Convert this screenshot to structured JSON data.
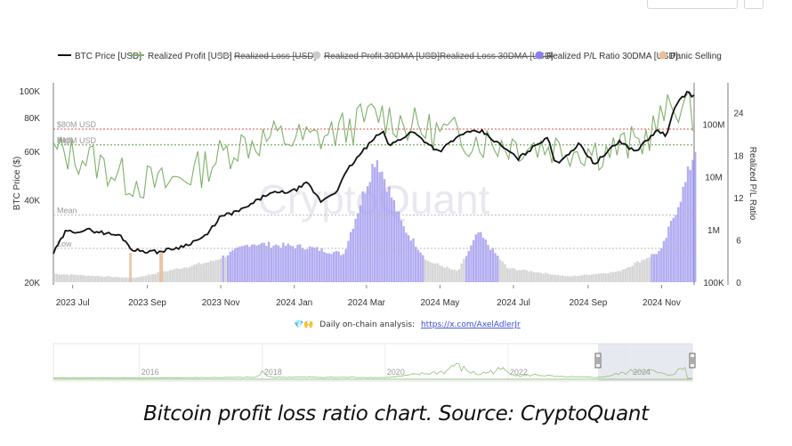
{
  "caption": "Bitcoin profit loss ratio chart. Source: CryptoQuant",
  "footer": {
    "note_icons": "💎🙌",
    "note_text": "Daily on-chain analysis:",
    "note_link": "https://x.com/AxelAdlerJr"
  },
  "colors": {
    "btc": "#111111",
    "profit": "#7fb069",
    "loss": "#c8c8c8",
    "ratio": "#a59ef0",
    "ratio_bg": "#cfcfcf",
    "panic": "#e8c09c",
    "ref80": "#d9534f",
    "ref40": "#7fb069"
  },
  "chart_data": {
    "type": "line",
    "legend_position": "top",
    "legend": [
      {
        "label": "BTC Price [USD]",
        "kind": "line",
        "color": "#111111",
        "struck": false
      },
      {
        "label": "Realized Profit [USD]",
        "kind": "line",
        "color": "#7fb069",
        "struck": false
      },
      {
        "label": "Realized Loss [USD]",
        "kind": "line",
        "color": "#bbbbbb",
        "struck": true
      },
      {
        "label": "Realized Profit 30DMA [USD]",
        "kind": "dot",
        "color": "#cccccc",
        "struck": true
      },
      {
        "label": "Realized Loss 30DMA [USD]",
        "kind": "line",
        "color": "#bbbbbb",
        "struck": true
      },
      {
        "label": "Realized P/L Ratio 30DMA [USD]",
        "kind": "dot",
        "color": "#8a7ff0",
        "struck": false
      },
      {
        "label": "Panic Selling",
        "kind": "dot",
        "color": "#e8c09c",
        "struck": false
      }
    ],
    "left_axis": {
      "title": "BTC Price ($)",
      "ticks": [
        "20K",
        "40K",
        "60K",
        "80K",
        "100K"
      ],
      "tick_values": [
        20000,
        40000,
        60000,
        80000,
        100000
      ],
      "range": [
        20000,
        100000
      ],
      "scale": "log"
    },
    "right_axis_1": {
      "ticks": [
        "100K",
        "1M",
        "10M",
        "100M"
      ],
      "tick_values": [
        100000,
        1000000,
        10000000,
        100000000
      ],
      "range": [
        100000,
        1000000000
      ],
      "scale": "log"
    },
    "right_axis_2": {
      "title": "Realized P/L Ratio",
      "ticks": [
        "0",
        "6",
        "12",
        "18",
        "24"
      ],
      "tick_values": [
        0,
        6,
        12,
        18,
        24
      ],
      "range": [
        0,
        28
      ]
    },
    "x_ticks": [
      "2023 Jul",
      "2023 Sep",
      "2023 Nov",
      "2024 Jan",
      "2024 Mar",
      "2024 May",
      "2024 Jul",
      "2024 Sep",
      "2024 Nov"
    ],
    "x_dates": [
      "2023-07-01",
      "2023-09-01",
      "2023-11-01",
      "2024-01-01",
      "2024-03-01",
      "2024-05-01",
      "2024-07-01",
      "2024-09-01",
      "2024-11-01"
    ],
    "reference_lines": [
      {
        "label": "$80M USD",
        "axis": "right_axis_1",
        "value": 80000000,
        "style": "dotted-red"
      },
      {
        "label": "High",
        "axis": "right_axis_2",
        "value": 19.5,
        "style": "dotted-gray"
      },
      {
        "label": "$40M USD",
        "axis": "right_axis_1",
        "value": 40000000,
        "style": "dotted-green"
      },
      {
        "label": "Mean",
        "axis": "right_axis_2",
        "value": 9.5,
        "style": "dotted-gray"
      },
      {
        "label": "Low",
        "axis": "right_axis_2",
        "value": 4.8,
        "style": "dotted-gray"
      }
    ],
    "watermark": "CryptoQuant",
    "btc_price": [
      [
        "2023-06-15",
        25500
      ],
      [
        "2023-06-25",
        30500
      ],
      [
        "2023-07-15",
        31000
      ],
      [
        "2023-08-10",
        29500
      ],
      [
        "2023-08-20",
        26200
      ],
      [
        "2023-09-10",
        25800
      ],
      [
        "2023-09-30",
        27000
      ],
      [
        "2023-10-20",
        29500
      ],
      [
        "2023-10-31",
        34500
      ],
      [
        "2023-11-20",
        37000
      ],
      [
        "2023-12-10",
        42000
      ],
      [
        "2023-12-31",
        43000
      ],
      [
        "2024-01-12",
        46000
      ],
      [
        "2024-01-23",
        39500
      ],
      [
        "2024-02-05",
        43000
      ],
      [
        "2024-02-15",
        52000
      ],
      [
        "2024-02-28",
        61000
      ],
      [
        "2024-03-14",
        71500
      ],
      [
        "2024-03-20",
        63000
      ],
      [
        "2024-04-08",
        71000
      ],
      [
        "2024-04-30",
        60000
      ],
      [
        "2024-05-20",
        70000
      ],
      [
        "2024-06-05",
        71000
      ],
      [
        "2024-06-25",
        61000
      ],
      [
        "2024-07-05",
        56500
      ],
      [
        "2024-07-29",
        68000
      ],
      [
        "2024-08-05",
        54000
      ],
      [
        "2024-08-25",
        64000
      ],
      [
        "2024-09-06",
        54000
      ],
      [
        "2024-09-27",
        65500
      ],
      [
        "2024-10-10",
        60000
      ],
      [
        "2024-10-29",
        72000
      ],
      [
        "2024-11-05",
        68000
      ],
      [
        "2024-11-13",
        90000
      ],
      [
        "2024-11-22",
        98500
      ],
      [
        "2024-11-28",
        95500
      ]
    ],
    "realized_profit_usd": [
      [
        "2023-06-15",
        30000000
      ],
      [
        "2023-07-15",
        22000000
      ],
      [
        "2023-08-15",
        9000000
      ],
      [
        "2023-09-15",
        7000000
      ],
      [
        "2023-10-15",
        14000000
      ],
      [
        "2023-11-15",
        40000000
      ],
      [
        "2023-12-15",
        55000000
      ],
      [
        "2024-01-15",
        50000000
      ],
      [
        "2024-02-15",
        85000000
      ],
      [
        "2024-03-10",
        160000000
      ],
      [
        "2024-04-15",
        80000000
      ],
      [
        "2024-05-15",
        60000000
      ],
      [
        "2024-06-15",
        45000000
      ],
      [
        "2024-07-15",
        40000000
      ],
      [
        "2024-08-15",
        35000000
      ],
      [
        "2024-09-15",
        30000000
      ],
      [
        "2024-10-15",
        45000000
      ],
      [
        "2024-11-13",
        250000000
      ],
      [
        "2024-11-28",
        150000000
      ]
    ],
    "realized_pl_ratio_30dma": [
      [
        "2023-06-15",
        1.2
      ],
      [
        "2023-08-20",
        0.6
      ],
      [
        "2023-10-25",
        3.0
      ],
      [
        "2023-11-25",
        5.5
      ],
      [
        "2024-01-10",
        5.0
      ],
      [
        "2024-02-10",
        4.0
      ],
      [
        "2024-03-08",
        18.0
      ],
      [
        "2024-03-30",
        8.0
      ],
      [
        "2024-04-20",
        3.0
      ],
      [
        "2024-05-15",
        1.5
      ],
      [
        "2024-06-01",
        7.0
      ],
      [
        "2024-06-25",
        2.0
      ],
      [
        "2024-08-15",
        0.8
      ],
      [
        "2024-09-25",
        1.5
      ],
      [
        "2024-10-31",
        4.5
      ],
      [
        "2024-11-20",
        14.0
      ],
      [
        "2024-11-28",
        19.0
      ]
    ],
    "panic_selling_periods": [
      [
        "2023-08-17",
        "2023-08-19"
      ],
      [
        "2023-09-11",
        "2023-09-14"
      ]
    ],
    "navigator": {
      "ticks": [
        "2016",
        "2018",
        "2020",
        "2022",
        "2024"
      ],
      "series": [
        [
          2014.6,
          0.02
        ],
        [
          2016.0,
          0.02
        ],
        [
          2017.9,
          0.05
        ],
        [
          2018.0,
          0.3
        ],
        [
          2018.15,
          0.06
        ],
        [
          2019.5,
          0.05
        ],
        [
          2020.0,
          0.04
        ],
        [
          2020.2,
          0.09
        ],
        [
          2021.0,
          0.35
        ],
        [
          2021.1,
          0.7
        ],
        [
          2021.25,
          0.5
        ],
        [
          2021.5,
          0.2
        ],
        [
          2021.9,
          0.45
        ],
        [
          2022.2,
          0.12
        ],
        [
          2022.5,
          0.18
        ],
        [
          2022.8,
          0.08
        ],
        [
          2023.5,
          0.05
        ],
        [
          2024.2,
          0.45
        ],
        [
          2024.6,
          0.15
        ],
        [
          2024.9,
          0.55
        ]
      ],
      "selected_range": [
        "2023-06-15",
        "2024-11-28"
      ]
    }
  }
}
